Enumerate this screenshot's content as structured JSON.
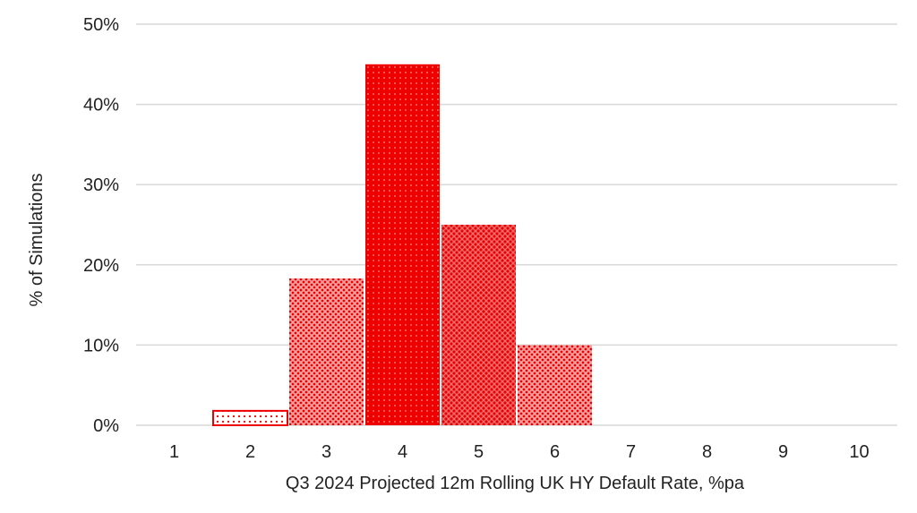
{
  "chart_data": {
    "type": "bar",
    "title": "",
    "xlabel": "Q3 2024 Projected 12m Rolling UK HY Default Rate, %pa",
    "ylabel": "% of Simulations",
    "categories": [
      "1",
      "2",
      "3",
      "4",
      "5",
      "6",
      "7",
      "8",
      "9",
      "10"
    ],
    "values": [
      0,
      1.8,
      18.3,
      45,
      25,
      10,
      0,
      0,
      0,
      0
    ],
    "ylim": [
      0,
      50
    ],
    "yticks": [
      0,
      10,
      20,
      30,
      40,
      50
    ],
    "ytick_labels": [
      "0%",
      "10%",
      "20%",
      "30%",
      "40%",
      "50%"
    ],
    "grid": true,
    "legend": "none",
    "colors": {
      "bar": "#ee0000",
      "dots": "#ffffff",
      "gridline": "#d9d9d9",
      "text": "#222222"
    },
    "bar_patterns": [
      "none",
      "sparse-dots",
      "cross-dots",
      "solid-dots",
      "dense-cross",
      "cross-dots",
      "none",
      "none",
      "none",
      "none"
    ]
  }
}
